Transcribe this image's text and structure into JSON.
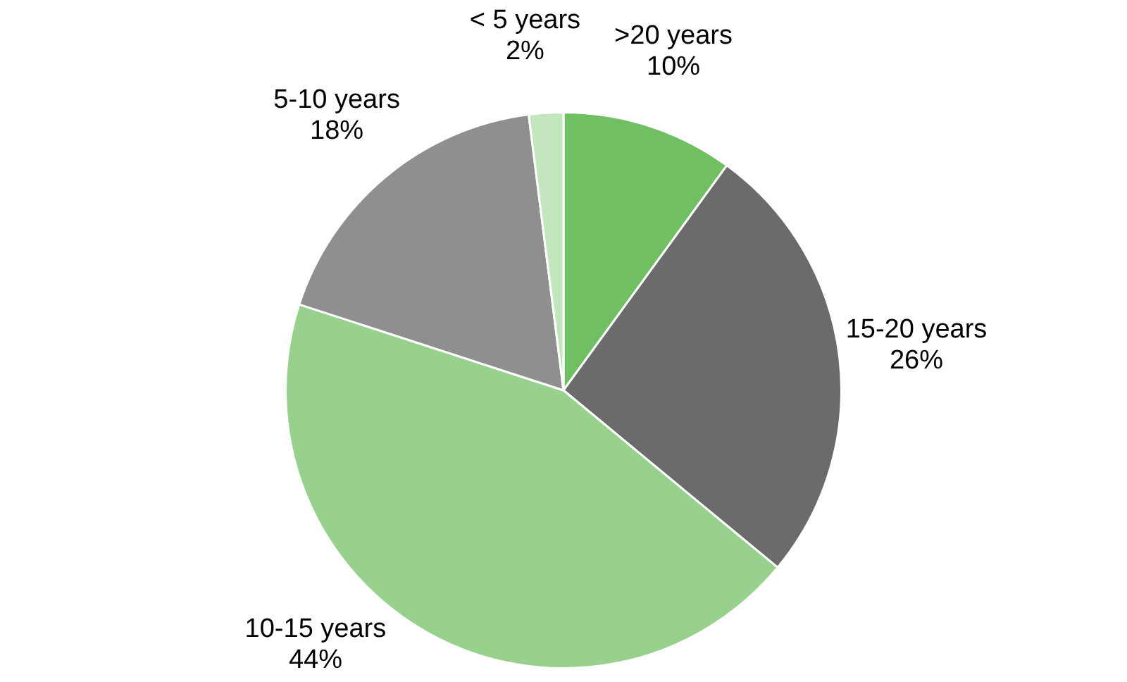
{
  "chart_data": {
    "type": "pie",
    "categories": [
      ">20 years",
      "15-20 years",
      "10-15 years",
      "5-10 years",
      "< 5 years"
    ],
    "values": [
      10,
      26,
      44,
      18,
      2
    ],
    "value_labels": [
      "10%",
      "26%",
      "44%",
      "18%",
      "2%"
    ],
    "colors": [
      "#70bf63",
      "#6b6b6b",
      "#97d18d",
      "#8f8f8f",
      "#c4e6be"
    ],
    "legend": false
  }
}
